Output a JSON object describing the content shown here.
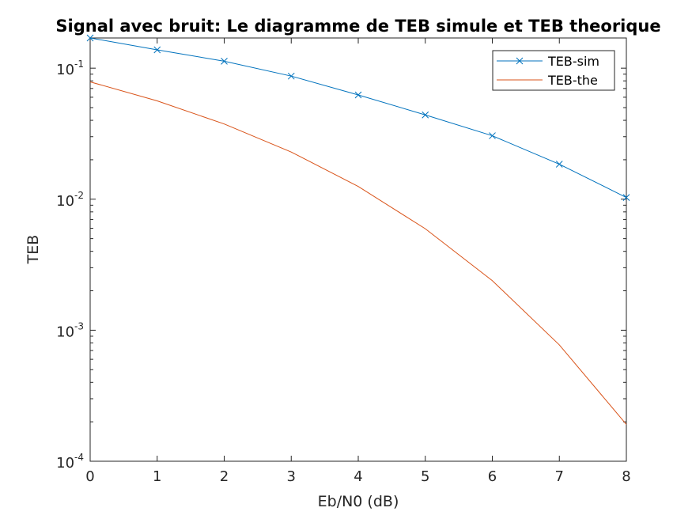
{
  "chart_data": {
    "type": "line",
    "title": "Signal avec bruit: Le diagramme de TEB simule et TEB theorique",
    "xlabel": "Eb/N0 (dB)",
    "ylabel": "TEB",
    "yscale": "log",
    "xlim": [
      0,
      8
    ],
    "ylim": [
      0.0001,
      0.17
    ],
    "x": [
      0,
      1,
      2,
      3,
      4,
      5,
      6,
      7,
      8
    ],
    "xticks": [
      "0",
      "1",
      "2",
      "3",
      "4",
      "5",
      "6",
      "7",
      "8"
    ],
    "yticks": [
      {
        "value": 0.0001,
        "base": "10",
        "exp": "-4"
      },
      {
        "value": 0.001,
        "base": "10",
        "exp": "-3"
      },
      {
        "value": 0.01,
        "base": "10",
        "exp": "-2"
      },
      {
        "value": 0.1,
        "base": "10",
        "exp": "-1"
      }
    ],
    "grid": false,
    "legend_position": "top-right",
    "series": [
      {
        "name": "TEB-sim",
        "color": "#0072BD",
        "marker": "x",
        "values": [
          0.17,
          0.138,
          0.113,
          0.087,
          0.0625,
          0.044,
          0.0305,
          0.0185,
          0.0103
        ]
      },
      {
        "name": "TEB-the",
        "color": "#D95319",
        "marker": "none",
        "values": [
          0.0786,
          0.0563,
          0.0375,
          0.0229,
          0.0125,
          0.00595,
          0.00239,
          0.000773,
          0.000191
        ]
      }
    ]
  }
}
